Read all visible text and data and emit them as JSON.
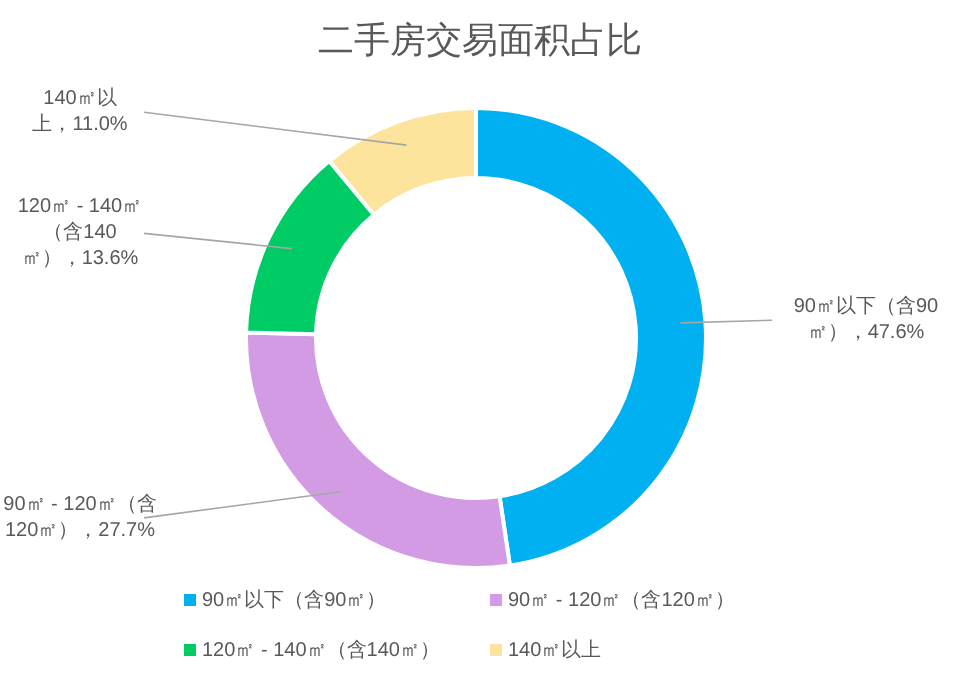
{
  "chart_data": {
    "type": "donut",
    "title": "二手房交易面积占比",
    "categories": [
      "90㎡以下（含90㎡）",
      "90㎡ - 120㎡（含120㎡）",
      "120㎡ - 140㎡（含140㎡）",
      "140㎡以上"
    ],
    "values": [
      47.6,
      27.7,
      13.6,
      11.0
    ],
    "colors": [
      "#00b0f0",
      "#d29be4",
      "#00cc66",
      "#fde49c"
    ],
    "value_labels": [
      "，47.6%",
      "，27.7%",
      "，13.6%",
      "，11.0%"
    ],
    "legend": "bottom"
  }
}
